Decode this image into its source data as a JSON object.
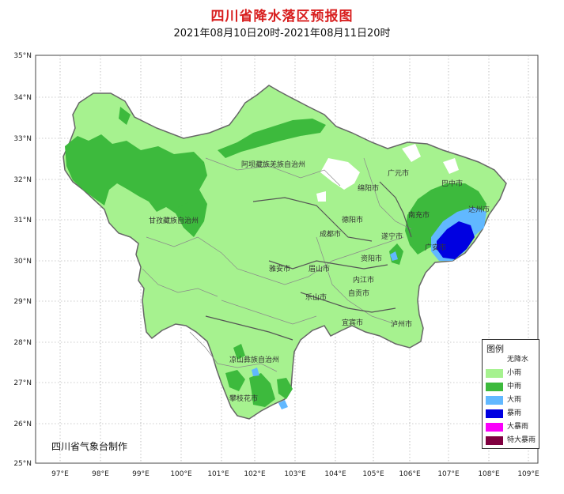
{
  "title": "四川省降水落区预报图",
  "subtitle": "2021年08月10日20时-2021年08月11日20时",
  "credit": "四川省气象台制作",
  "axes": {
    "lat_labels": [
      "35°N",
      "34°N",
      "33°N",
      "32°N",
      "31°N",
      "30°N",
      "29°N",
      "28°N",
      "27°N",
      "26°N",
      "25°N"
    ],
    "lon_labels": [
      "97°E",
      "98°E",
      "99°E",
      "100°E",
      "101°E",
      "102°E",
      "103°E",
      "104°E",
      "105°E",
      "106°E",
      "107°E",
      "108°E",
      "109°E"
    ]
  },
  "regions": [
    {
      "name": "阿坝藏族羌族自治州"
    },
    {
      "name": "甘孜藏族自治州"
    },
    {
      "name": "广元市"
    },
    {
      "name": "巴中市"
    },
    {
      "name": "绵阳市"
    },
    {
      "name": "达州市"
    },
    {
      "name": "南充市"
    },
    {
      "name": "德阳市"
    },
    {
      "name": "成都市"
    },
    {
      "name": "遂宁市"
    },
    {
      "name": "广安市"
    },
    {
      "name": "资阳市"
    },
    {
      "name": "雅安市"
    },
    {
      "name": "眉山市"
    },
    {
      "name": "内江市"
    },
    {
      "name": "乐山市"
    },
    {
      "name": "自贡市"
    },
    {
      "name": "宜宾市"
    },
    {
      "name": "泸州市"
    },
    {
      "name": "凉山彝族自治州"
    },
    {
      "name": "攀枝花市"
    }
  ],
  "legend": {
    "title": "图例",
    "items": [
      {
        "label": "无降水",
        "color": "#ffffff"
      },
      {
        "label": "小雨",
        "color": "#a6f28f"
      },
      {
        "label": "中雨",
        "color": "#3dba3d"
      },
      {
        "label": "大雨",
        "color": "#61b8ff"
      },
      {
        "label": "暴雨",
        "color": "#0000e1"
      },
      {
        "label": "大暴雨",
        "color": "#fa00fa"
      },
      {
        "label": "特大暴雨",
        "color": "#800040"
      }
    ]
  }
}
